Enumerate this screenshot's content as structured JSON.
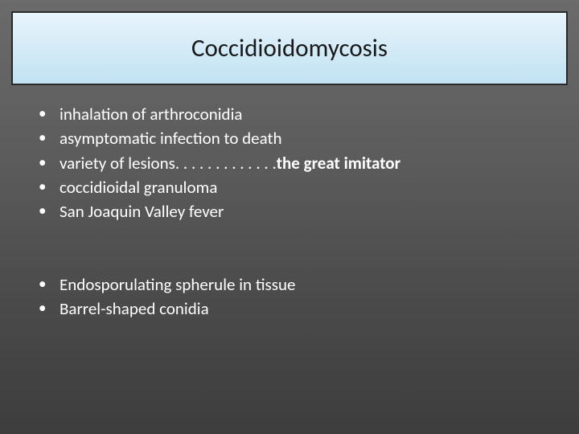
{
  "title": "Coccidioidomycosis",
  "colors": {
    "title_bg_top": "#e8f4fb",
    "title_bg_bottom": "#c1e2f3",
    "title_border": "#2a2a2a",
    "title_text": "#1a1a1a",
    "body_bg_top": "#6b6b6b",
    "body_bg_bottom": "#3d3d3d",
    "body_text": "#ffffff"
  },
  "typography": {
    "title_fontsize": 31,
    "body_fontsize": 21,
    "font_family": "Calibri"
  },
  "group1": {
    "b0": "inhalation of arthroconidia",
    "b1": "asymptomatic infection to death",
    "b2_prefix": "variety of lesions. . . . . . . . . . . . .",
    "b2_bold": "the great imitator",
    "b3": "coccidioidal granuloma",
    "b4": "San Joaquin Valley fever"
  },
  "group2": {
    "b0": "Endosporulating spherule in tissue",
    "b1": "Barrel-shaped conidia"
  },
  "bullet_char": "•"
}
